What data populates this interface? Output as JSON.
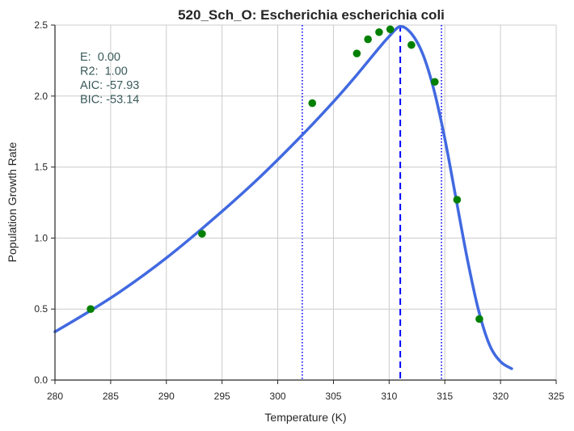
{
  "chart_data": {
    "type": "scatter",
    "title": "520_Sch_O: Escherichia escherichia coli",
    "xlabel": "Temperature (K)",
    "ylabel": "Population Growth Rate",
    "xlim": [
      280,
      325
    ],
    "ylim": [
      0.0,
      2.5
    ],
    "xticks": [
      280,
      285,
      290,
      295,
      300,
      305,
      310,
      315,
      320,
      325
    ],
    "xtick_labels": [
      "280",
      "285",
      "290",
      "295",
      "300",
      "305",
      "310",
      "315",
      "320",
      "325"
    ],
    "yticks": [
      0.0,
      0.5,
      1.0,
      1.5,
      2.0,
      2.5
    ],
    "ytick_labels": [
      "0.0",
      "0.5",
      "1.0",
      "1.5",
      "2.0",
      "2.5"
    ],
    "grid": true,
    "stats": [
      "E:  0.00",
      "R2:  1.00",
      "AIC: -57.93",
      "BIC: -53.14"
    ],
    "points": {
      "color": "#008000",
      "x": [
        283.2,
        293.2,
        303.1,
        307.1,
        308.1,
        309.1,
        310.1,
        312.0,
        314.1,
        316.1,
        318.1
      ],
      "y": [
        0.5,
        1.03,
        1.95,
        2.3,
        2.4,
        2.45,
        2.47,
        2.36,
        2.1,
        1.27,
        0.43
      ]
    },
    "fit_curve": {
      "color": "#4169e1",
      "x": [
        280,
        283,
        286,
        290,
        294,
        298,
        302,
        305,
        307,
        309,
        310,
        311,
        312,
        313,
        314,
        315,
        316,
        317,
        318,
        319,
        320,
        321
      ],
      "y": [
        0.34,
        0.48,
        0.63,
        0.86,
        1.12,
        1.4,
        1.71,
        1.96,
        2.14,
        2.33,
        2.42,
        2.49,
        2.44,
        2.3,
        2.05,
        1.7,
        1.28,
        0.86,
        0.5,
        0.25,
        0.13,
        0.08
      ]
    },
    "vlines": [
      {
        "x": 302.2,
        "style": "dotted",
        "color": "#0000ff"
      },
      {
        "x": 311.0,
        "style": "dashed",
        "color": "#0000ff"
      },
      {
        "x": 314.7,
        "style": "dotted",
        "color": "#0000ff"
      }
    ]
  }
}
